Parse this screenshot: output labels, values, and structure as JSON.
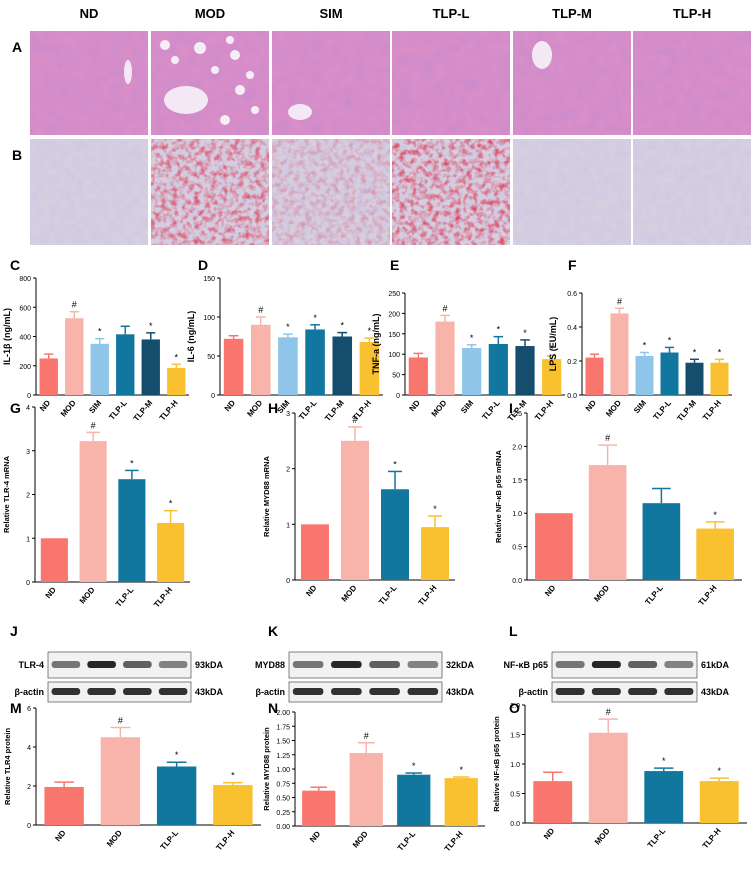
{
  "histology": {
    "groups": [
      "ND",
      "MOD",
      "SIM",
      "TLP-L",
      "TLP-M",
      "TLP-H"
    ],
    "row_labels": [
      "A",
      "B"
    ]
  },
  "colors": {
    "ND": "#f8766d",
    "MOD": "#f8b4aa",
    "SIM": "#8ec5e8",
    "TLP-L": "#11779e",
    "TLP-M": "#154e6d",
    "TLP-H": "#f9c030"
  },
  "chart_data": [
    {
      "id": "C",
      "type": "bar",
      "ylabel": "IL-1β (ng/mL)",
      "ylim": [
        0,
        800
      ],
      "yticks": [
        "0",
        "200",
        "400",
        "600",
        "800"
      ],
      "categories": [
        "ND",
        "MOD",
        "SIM",
        "TLP-L",
        "TLP-M",
        "TLP-H"
      ],
      "values": [
        250,
        525,
        350,
        415,
        380,
        185
      ],
      "errors": [
        30,
        45,
        35,
        55,
        45,
        25
      ],
      "marks": [
        "",
        "#",
        "*",
        "",
        "*",
        "*"
      ]
    },
    {
      "id": "D",
      "type": "bar",
      "ylabel": "IL-6 (ng/mL)",
      "ylim": [
        0,
        150
      ],
      "yticks": [
        "0",
        "50",
        "100",
        "150"
      ],
      "categories": [
        "ND",
        "MOD",
        "SIM",
        "TLP-L",
        "TLP-M",
        "TLP-H"
      ],
      "values": [
        72,
        90,
        74,
        84,
        75,
        68
      ],
      "errors": [
        4,
        10,
        4,
        6,
        5,
        5
      ],
      "marks": [
        "",
        "#",
        "*",
        "*",
        "*",
        "*"
      ]
    },
    {
      "id": "E",
      "type": "bar",
      "ylabel": "TNF-a (ng/mL)",
      "ylim": [
        0,
        250
      ],
      "yticks": [
        "0",
        "50",
        "100",
        "150",
        "200",
        "250"
      ],
      "categories": [
        "ND",
        "MOD",
        "SIM",
        "TLP-L",
        "TLP-M",
        "TLP-H"
      ],
      "values": [
        92,
        180,
        115,
        125,
        120,
        88
      ],
      "errors": [
        10,
        15,
        8,
        18,
        15,
        8
      ],
      "marks": [
        "",
        "#",
        "*",
        "*",
        "*",
        "*"
      ]
    },
    {
      "id": "F",
      "type": "bar",
      "ylabel": "LPS (EU/mL)",
      "ylim": [
        0,
        0.6
      ],
      "yticks": [
        "0.0",
        "0.2",
        "0.4",
        "0.6"
      ],
      "categories": [
        "ND",
        "MOD",
        "SIM",
        "TLP-L",
        "TLP-M",
        "TLP-H"
      ],
      "values": [
        0.22,
        0.48,
        0.23,
        0.25,
        0.19,
        0.19
      ],
      "errors": [
        0.02,
        0.03,
        0.02,
        0.03,
        0.02,
        0.02
      ],
      "marks": [
        "",
        "#",
        "*",
        "*",
        "*",
        "*"
      ]
    },
    {
      "id": "G",
      "type": "bar",
      "ylabel": "Relative TLR-4 mRNA",
      "ylim": [
        0,
        4
      ],
      "yticks": [
        "0",
        "1",
        "2",
        "3",
        "4"
      ],
      "categories": [
        "ND",
        "MOD",
        "TLP-L",
        "TLP-H"
      ],
      "values": [
        1.0,
        3.22,
        2.35,
        1.35
      ],
      "errors": [
        0,
        0.2,
        0.2,
        0.28
      ],
      "marks": [
        "",
        "#",
        "*",
        "*"
      ]
    },
    {
      "id": "H",
      "type": "bar",
      "ylabel": "Relative MYD88 mRNA",
      "ylim": [
        0,
        3
      ],
      "yticks": [
        "0",
        "1",
        "2",
        "3"
      ],
      "categories": [
        "ND",
        "MOD",
        "TLP-L",
        "TLP-H"
      ],
      "values": [
        1.0,
        2.5,
        1.63,
        0.95
      ],
      "errors": [
        0,
        0.25,
        0.32,
        0.2
      ],
      "marks": [
        "",
        "#",
        "*",
        "*"
      ]
    },
    {
      "id": "I",
      "type": "bar",
      "ylabel": "Relative NF-κB p65 mRNA",
      "ylim": [
        0,
        2.5
      ],
      "yticks": [
        "0.0",
        "0.5",
        "1.0",
        "1.5",
        "2.0",
        "2.5"
      ],
      "categories": [
        "ND",
        "MOD",
        "TLP-L",
        "TLP-H"
      ],
      "values": [
        1.0,
        1.72,
        1.15,
        0.77
      ],
      "errors": [
        0,
        0.3,
        0.22,
        0.1
      ],
      "marks": [
        "",
        "#",
        "",
        "*"
      ]
    },
    {
      "id": "M",
      "type": "bar",
      "ylabel": "Relative TLR4 protein",
      "ylim": [
        0,
        6
      ],
      "yticks": [
        "0",
        "2",
        "4",
        "6"
      ],
      "categories": [
        "ND",
        "MOD",
        "TLP-L",
        "TLP-H"
      ],
      "values": [
        1.95,
        4.5,
        3.0,
        2.05
      ],
      "errors": [
        0.25,
        0.5,
        0.22,
        0.12
      ],
      "marks": [
        "",
        "#",
        "*",
        "*"
      ]
    },
    {
      "id": "N",
      "type": "bar",
      "ylabel": "Relative MYD88 protein",
      "ylim": [
        0,
        2
      ],
      "yticks": [
        "0.00",
        "0.25",
        "0.50",
        "0.75",
        "1.00",
        "1.25",
        "1.50",
        "1.75",
        "2.00"
      ],
      "categories": [
        "ND",
        "MOD",
        "TLP-L",
        "TLP-H"
      ],
      "values": [
        0.62,
        1.28,
        0.9,
        0.84
      ],
      "errors": [
        0.06,
        0.18,
        0.03,
        0.02
      ],
      "marks": [
        "",
        "#",
        "*",
        "*"
      ]
    },
    {
      "id": "O",
      "type": "bar",
      "ylabel": "Relative NF-κB p65 protein",
      "ylim": [
        0,
        2
      ],
      "yticks": [
        "0.0",
        "0.5",
        "1.0",
        "1.5",
        "2.0"
      ],
      "categories": [
        "ND",
        "MOD",
        "TLP-L",
        "TLP-H"
      ],
      "values": [
        0.71,
        1.53,
        0.88,
        0.71
      ],
      "errors": [
        0.15,
        0.23,
        0.05,
        0.05
      ],
      "marks": [
        "",
        "#",
        "*",
        "*"
      ]
    }
  ],
  "blots": [
    {
      "id": "J",
      "target": "TLR-4",
      "target_size": "93kDA",
      "control": "β-actin",
      "control_size": "43kDA"
    },
    {
      "id": "K",
      "target": "MYD88",
      "target_size": "32kDA",
      "control": "β-actin",
      "control_size": "43kDA"
    },
    {
      "id": "L",
      "target": "NF-κB p65",
      "target_size": "61kDA",
      "control": "β-actin",
      "control_size": "43kDA"
    }
  ]
}
